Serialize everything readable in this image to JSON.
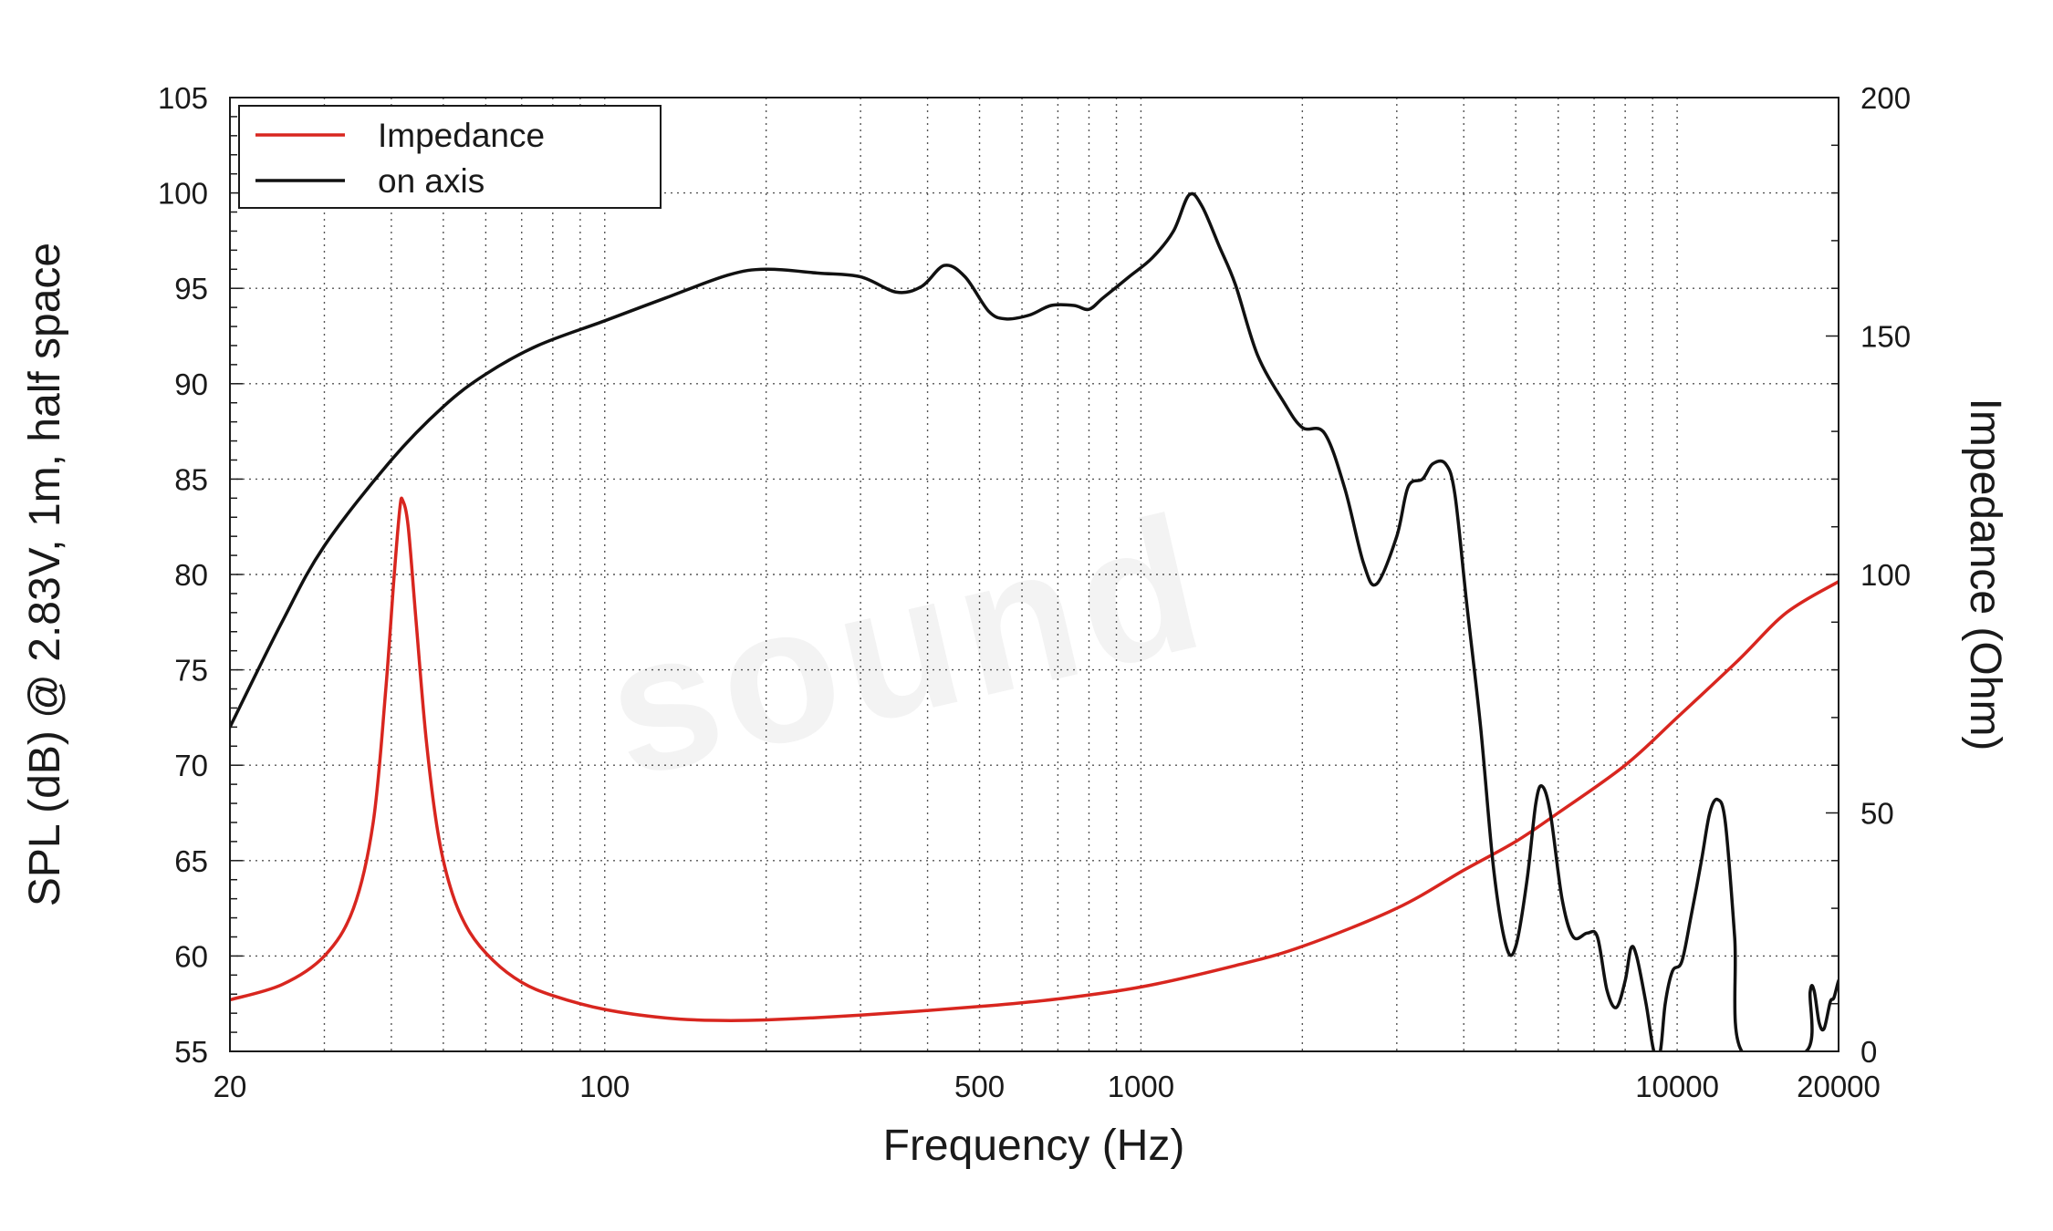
{
  "watermark": "sound",
  "chart_data": {
    "type": "line",
    "title": "",
    "xlabel": "Frequency (Hz)",
    "ylabel": "SPL (dB) @ 2.83V, 1m, half space",
    "y2label": "Impedance (Ohm)",
    "xscale": "log",
    "xlim": [
      20,
      20000
    ],
    "ylim": [
      55,
      105
    ],
    "y2lim": [
      0,
      200
    ],
    "grid": true,
    "legend_position": "top-left",
    "x_ticks": [
      20,
      100,
      500,
      1000,
      10000,
      20000
    ],
    "x_tick_labels": [
      "20",
      "100",
      "500",
      "1000",
      "10000",
      "20000"
    ],
    "y_ticks": [
      55,
      60,
      65,
      70,
      75,
      80,
      85,
      90,
      95,
      100,
      105
    ],
    "y_tick_labels": [
      "55",
      "60",
      "65",
      "70",
      "75",
      "80",
      "85",
      "90",
      "95",
      "100",
      "105"
    ],
    "y2_ticks": [
      0,
      50,
      100,
      150,
      200
    ],
    "y2_tick_labels": [
      "0",
      "50",
      "100",
      "150",
      "200"
    ],
    "series": [
      {
        "name": "Impedance",
        "axis": "right",
        "color": "#d8261f",
        "points": [
          [
            20,
            10.8
          ],
          [
            25,
            14
          ],
          [
            30,
            20
          ],
          [
            34,
            30
          ],
          [
            37,
            48
          ],
          [
            39,
            75
          ],
          [
            40.5,
            100
          ],
          [
            41.5,
            114
          ],
          [
            42,
            115.5
          ],
          [
            43,
            110
          ],
          [
            44.5,
            90
          ],
          [
            46.5,
            65
          ],
          [
            49,
            45
          ],
          [
            52,
            33
          ],
          [
            56,
            25
          ],
          [
            62,
            19
          ],
          [
            70,
            14.5
          ],
          [
            80,
            11.7
          ],
          [
            100,
            8.8
          ],
          [
            130,
            7
          ],
          [
            160,
            6.5
          ],
          [
            200,
            6.6
          ],
          [
            300,
            7.6
          ],
          [
            500,
            9.4
          ],
          [
            700,
            11
          ],
          [
            1000,
            13.5
          ],
          [
            1500,
            18
          ],
          [
            2000,
            22
          ],
          [
            3000,
            30
          ],
          [
            4000,
            38
          ],
          [
            5000,
            44
          ],
          [
            6000,
            50
          ],
          [
            8000,
            60
          ],
          [
            10000,
            70
          ],
          [
            13000,
            82
          ],
          [
            16000,
            92
          ],
          [
            20000,
            98.5
          ]
        ]
      },
      {
        "name": "on axis",
        "axis": "left",
        "color": "#111111",
        "points": [
          [
            20,
            72
          ],
          [
            25,
            77.5
          ],
          [
            30,
            81.5
          ],
          [
            40,
            86
          ],
          [
            50,
            88.8
          ],
          [
            60,
            90.5
          ],
          [
            75,
            92
          ],
          [
            100,
            93.3
          ],
          [
            130,
            94.5
          ],
          [
            170,
            95.7
          ],
          [
            200,
            96
          ],
          [
            250,
            95.8
          ],
          [
            300,
            95.6
          ],
          [
            350,
            94.8
          ],
          [
            390,
            95.1
          ],
          [
            430,
            96.2
          ],
          [
            470,
            95.6
          ],
          [
            520,
            93.8
          ],
          [
            560,
            93.4
          ],
          [
            620,
            93.6
          ],
          [
            680,
            94.1
          ],
          [
            750,
            94.1
          ],
          [
            800,
            93.9
          ],
          [
            850,
            94.5
          ],
          [
            950,
            95.6
          ],
          [
            1050,
            96.6
          ],
          [
            1150,
            98
          ],
          [
            1230,
            99.9
          ],
          [
            1300,
            99.3
          ],
          [
            1400,
            97.2
          ],
          [
            1500,
            95.2
          ],
          [
            1650,
            91.5
          ],
          [
            1850,
            89
          ],
          [
            2000,
            87.7
          ],
          [
            2200,
            87.4
          ],
          [
            2400,
            84.5
          ],
          [
            2600,
            80.6
          ],
          [
            2750,
            79.5
          ],
          [
            3000,
            82
          ],
          [
            3150,
            84.6
          ],
          [
            3350,
            85
          ],
          [
            3500,
            85.8
          ],
          [
            3700,
            85.8
          ],
          [
            3850,
            84.2
          ],
          [
            4050,
            78.5
          ],
          [
            4300,
            72
          ],
          [
            4550,
            64.5
          ],
          [
            4800,
            60.5
          ],
          [
            5000,
            60.5
          ],
          [
            5250,
            64
          ],
          [
            5450,
            68
          ],
          [
            5600,
            68.9
          ],
          [
            5800,
            67.5
          ],
          [
            6100,
            63
          ],
          [
            6400,
            61
          ],
          [
            6800,
            61.2
          ],
          [
            7100,
            61
          ],
          [
            7400,
            58.2
          ],
          [
            7700,
            57.3
          ],
          [
            8000,
            58.7
          ],
          [
            8200,
            60.4
          ],
          [
            8400,
            60
          ],
          [
            8750,
            57.5
          ],
          [
            9050,
            55
          ],
          [
            9300,
            55
          ],
          [
            9500,
            57.5
          ],
          [
            9800,
            59.2
          ],
          [
            10200,
            59.7
          ],
          [
            10600,
            62
          ],
          [
            11100,
            65
          ],
          [
            11500,
            67.5
          ],
          [
            11900,
            68.2
          ],
          [
            12300,
            67
          ],
          [
            12800,
            61
          ],
          [
            13200,
            55
          ],
          [
            17400,
            55
          ],
          [
            17700,
            58.1
          ],
          [
            18000,
            58.2
          ],
          [
            18400,
            56.5
          ],
          [
            18800,
            56.2
          ],
          [
            19300,
            57.6
          ],
          [
            19600,
            57.8
          ],
          [
            20000,
            58.7
          ],
          [
            20300,
            58.9
          ],
          [
            20700,
            58.5
          ],
          [
            21100,
            55
          ]
        ]
      }
    ]
  }
}
